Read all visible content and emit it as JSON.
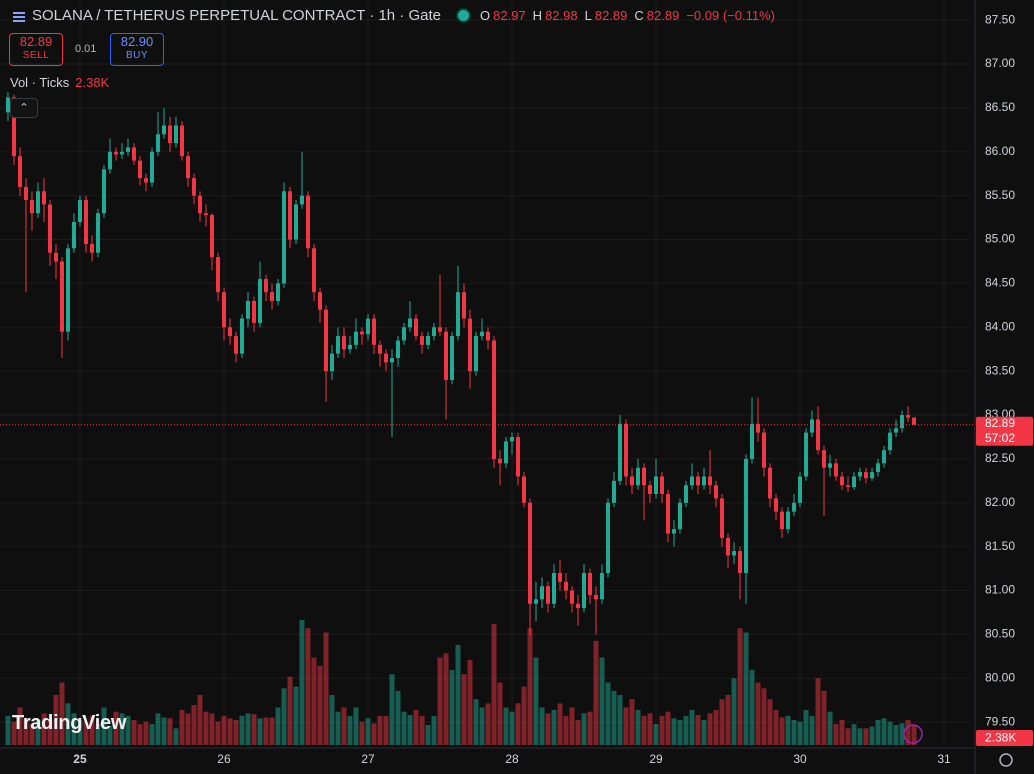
{
  "chart_data": {
    "type": "candlestick",
    "title": "SOLANA / TETHERUS PERPETUAL CONTRACT · 1h · Gate",
    "legend": {
      "labels": [
        "O",
        "H",
        "L",
        "C"
      ],
      "values": [
        "82.97",
        "82.98",
        "82.89",
        "82.89"
      ],
      "change": "−0.09 (−0.11%)"
    },
    "open": [
      86.45,
      86.62,
      85.95,
      85.6,
      85.45,
      85.3,
      85.55,
      85.4,
      84.85,
      84.75,
      83.95,
      84.9,
      85.2,
      85.45,
      84.95,
      84.85,
      85.3,
      85.8,
      86.0,
      85.97,
      86.0,
      86.05,
      85.9,
      85.7,
      85.65,
      86.0,
      86.2,
      86.3,
      86.1,
      86.3,
      85.95,
      85.7,
      85.5,
      85.3,
      85.28,
      84.8,
      84.4,
      84.0,
      83.9,
      83.7,
      84.1,
      84.3,
      84.05,
      84.55,
      84.4,
      84.3,
      84.5,
      85.55,
      85.0,
      85.4,
      85.5,
      84.9,
      84.4,
      84.2,
      83.5,
      83.7,
      83.9,
      83.75,
      83.8,
      83.95,
      83.92,
      84.1,
      83.8,
      83.7,
      83.6,
      83.65,
      83.85,
      84.0,
      84.1,
      83.9,
      83.8,
      83.9,
      84.0,
      83.95,
      83.4,
      83.9,
      84.4,
      84.1,
      83.5,
      83.9,
      83.95,
      83.85,
      82.5,
      82.45,
      82.7,
      82.75,
      82.3,
      82.0,
      80.85,
      80.9,
      81.05,
      80.85,
      81.2,
      81.1,
      81.0,
      80.85,
      80.8,
      81.2,
      80.95,
      80.9,
      81.2,
      82.0,
      82.25,
      82.9,
      82.3,
      82.2,
      82.4,
      82.2,
      82.1,
      82.3,
      82.1,
      81.65,
      81.7,
      82.0,
      82.2,
      82.3,
      82.2,
      82.3,
      82.2,
      82.05,
      81.6,
      81.4,
      81.45,
      81.2,
      82.5,
      82.9,
      82.8,
      82.4,
      82.05,
      81.9,
      81.7,
      81.9,
      82.0,
      82.3,
      82.8,
      82.95,
      82.6,
      82.4,
      82.45,
      82.3,
      82.2,
      82.18,
      82.3,
      82.35,
      82.28,
      82.35,
      82.45,
      82.6,
      82.8,
      82.85,
      83.0,
      82.97
    ],
    "high": [
      86.68,
      86.65,
      86.05,
      85.7,
      85.55,
      85.65,
      85.7,
      85.45,
      84.95,
      84.8,
      84.95,
      85.3,
      85.5,
      85.5,
      85.05,
      85.35,
      85.85,
      86.15,
      86.05,
      86.1,
      86.15,
      86.1,
      85.95,
      85.75,
      86.05,
      86.45,
      86.5,
      86.4,
      86.4,
      86.35,
      86.0,
      85.75,
      85.55,
      85.4,
      85.3,
      84.85,
      84.45,
      84.1,
      83.95,
      84.15,
      84.4,
      84.35,
      84.75,
      84.6,
      84.5,
      84.55,
      85.65,
      85.6,
      85.45,
      86.0,
      85.55,
      84.95,
      84.45,
      84.25,
      83.8,
      84.0,
      84.0,
      83.9,
      84.1,
      84.0,
      84.15,
      84.15,
      83.85,
      83.75,
      83.75,
      83.9,
      84.05,
      84.3,
      84.15,
      83.95,
      83.95,
      84.05,
      84.6,
      84.0,
      83.95,
      84.7,
      84.5,
      84.2,
      83.95,
      84.1,
      84.0,
      83.9,
      82.6,
      82.75,
      82.8,
      82.8,
      82.35,
      82.05,
      81.1,
      81.15,
      81.1,
      81.3,
      81.35,
      81.2,
      81.05,
      80.95,
      81.3,
      81.25,
      81.05,
      81.3,
      82.05,
      82.35,
      83.0,
      82.95,
      82.4,
      82.5,
      82.45,
      82.25,
      82.5,
      82.35,
      82.15,
      81.8,
      82.05,
      82.25,
      82.45,
      82.35,
      82.4,
      82.6,
      82.25,
      82.1,
      81.65,
      81.55,
      81.5,
      82.55,
      83.2,
      83.2,
      82.85,
      82.45,
      82.1,
      81.95,
      81.95,
      82.1,
      82.35,
      82.85,
      83.05,
      83.1,
      82.65,
      82.55,
      82.5,
      82.35,
      82.3,
      82.35,
      82.4,
      82.4,
      82.4,
      82.5,
      82.65,
      82.85,
      82.95,
      83.05,
      83.1,
      82.98
    ],
    "low": [
      86.35,
      85.85,
      85.5,
      84.4,
      85.1,
      85.25,
      85.2,
      84.7,
      84.55,
      83.65,
      83.85,
      84.85,
      85.15,
      84.85,
      84.75,
      84.8,
      85.25,
      85.75,
      85.9,
      85.92,
      85.95,
      85.85,
      85.62,
      85.55,
      85.6,
      85.95,
      86.15,
      86.0,
      86.05,
      85.9,
      85.6,
      85.4,
      85.2,
      85.15,
      84.65,
      84.3,
      83.85,
      83.8,
      83.6,
      83.65,
      84.0,
      83.95,
      84.0,
      84.3,
      84.2,
      84.25,
      84.45,
      84.9,
      84.95,
      85.35,
      84.8,
      84.3,
      84.05,
      83.15,
      83.4,
      83.65,
      83.65,
      83.7,
      83.75,
      83.8,
      83.85,
      83.7,
      83.55,
      83.5,
      82.75,
      83.55,
      83.8,
      83.95,
      83.85,
      83.7,
      83.75,
      83.85,
      83.9,
      82.95,
      83.35,
      83.85,
      84.0,
      83.3,
      83.45,
      83.85,
      83.75,
      82.4,
      82.2,
      82.4,
      82.55,
      82.2,
      81.95,
      80.5,
      80.65,
      80.8,
      80.75,
      80.8,
      81.0,
      80.9,
      80.75,
      80.6,
      80.75,
      80.85,
      80.5,
      80.85,
      81.15,
      81.95,
      82.2,
      82.2,
      82.1,
      82.15,
      81.8,
      82.0,
      82.05,
      82.0,
      81.55,
      81.5,
      81.65,
      81.95,
      82.15,
      82.1,
      82.15,
      82.1,
      81.95,
      81.5,
      81.25,
      81.3,
      80.9,
      80.85,
      82.45,
      82.7,
      82.3,
      81.95,
      81.8,
      81.6,
      81.65,
      81.85,
      81.95,
      82.25,
      82.75,
      82.55,
      81.85,
      82.3,
      82.25,
      82.15,
      82.12,
      82.15,
      82.25,
      82.22,
      82.25,
      82.3,
      82.4,
      82.55,
      82.75,
      82.8,
      82.92,
      82.89
    ],
    "close": [
      86.62,
      85.95,
      85.6,
      85.45,
      85.3,
      85.55,
      85.4,
      84.85,
      84.75,
      83.95,
      84.9,
      85.2,
      85.45,
      84.95,
      84.85,
      85.3,
      85.8,
      86.0,
      85.97,
      86.0,
      86.05,
      85.9,
      85.7,
      85.65,
      86.0,
      86.2,
      86.3,
      86.1,
      86.3,
      85.95,
      85.7,
      85.5,
      85.3,
      85.28,
      84.8,
      84.4,
      84.0,
      83.9,
      83.7,
      84.1,
      84.3,
      84.05,
      84.55,
      84.4,
      84.3,
      84.5,
      85.55,
      85.0,
      85.4,
      85.5,
      84.9,
      84.4,
      84.2,
      83.5,
      83.7,
      83.9,
      83.75,
      83.8,
      83.95,
      83.92,
      84.1,
      83.8,
      83.7,
      83.6,
      83.65,
      83.85,
      84.0,
      84.1,
      83.9,
      83.8,
      83.9,
      84.0,
      83.95,
      83.4,
      83.9,
      84.4,
      84.1,
      83.5,
      83.9,
      83.95,
      83.85,
      82.5,
      82.45,
      82.7,
      82.75,
      82.3,
      82.0,
      80.85,
      80.9,
      81.05,
      80.85,
      81.2,
      81.1,
      81.0,
      80.85,
      80.8,
      81.2,
      80.95,
      80.9,
      81.2,
      82.0,
      82.25,
      82.9,
      82.3,
      82.2,
      82.4,
      82.2,
      82.1,
      82.3,
      82.1,
      81.65,
      81.7,
      82.0,
      82.2,
      82.3,
      82.2,
      82.3,
      82.2,
      82.05,
      81.6,
      81.4,
      81.45,
      81.2,
      82.5,
      82.9,
      82.8,
      82.4,
      82.05,
      81.9,
      81.7,
      81.9,
      82.0,
      82.3,
      82.8,
      82.95,
      82.6,
      82.4,
      82.45,
      82.3,
      82.2,
      82.18,
      82.3,
      82.35,
      82.28,
      82.35,
      82.45,
      82.6,
      82.8,
      82.85,
      83.0,
      82.97,
      82.89
    ],
    "volume": [
      3500,
      2800,
      4500,
      3200,
      2500,
      3000,
      3800,
      3000,
      6000,
      7500,
      5000,
      3800,
      3000,
      2800,
      3500,
      2500,
      4500,
      2300,
      4000,
      3800,
      3500,
      3000,
      2500,
      2800,
      2500,
      3800,
      3300,
      3200,
      2000,
      4200,
      3800,
      4800,
      6000,
      4000,
      3800,
      2800,
      3500,
      3200,
      3000,
      3500,
      3800,
      3700,
      3200,
      3300,
      3300,
      4500,
      6800,
      8200,
      7000,
      15000,
      14000,
      10500,
      9500,
      13500,
      6000,
      4000,
      4500,
      3500,
      4500,
      2800,
      3200,
      2600,
      3500,
      3500,
      8500,
      6500,
      4000,
      3600,
      4200,
      3500,
      2400,
      3500,
      10500,
      11000,
      9000,
      12000,
      8500,
      10200,
      5500,
      4500,
      5000,
      14500,
      7500,
      4500,
      4000,
      5000,
      7000,
      14000,
      10500,
      4500,
      3800,
      4200,
      5000,
      3500,
      4500,
      3000,
      3800,
      4000,
      12500,
      10500,
      7500,
      6500,
      6000,
      4500,
      5500,
      4200,
      3500,
      3800,
      2500,
      3500,
      4000,
      3200,
      3000,
      3500,
      4200,
      3600,
      3000,
      3800,
      4200,
      5500,
      6000,
      8000,
      14000,
      13500,
      9000,
      7500,
      6800,
      5500,
      4200,
      3300,
      3500,
      3000,
      2800,
      4200,
      3500,
      8000,
      6500,
      4000,
      2500,
      3000,
      2000,
      2500,
      2000,
      2000,
      2200,
      3000,
      3200,
      2800,
      2400,
      2600,
      3000,
      2380
    ],
    "volume_indicator": "Vol · Ticks",
    "volume_label": "2.38K",
    "up_color": "#22ab94",
    "down_color": "#f23645",
    "ylim": [
      79.24,
      87.73
    ],
    "yticks": [
      {
        "value": 79.5,
        "label": "79.50"
      },
      {
        "value": 80,
        "label": "80.00"
      },
      {
        "value": 80.5,
        "label": "80.50"
      },
      {
        "value": 81,
        "label": "81.00"
      },
      {
        "value": 81.5,
        "label": "81.50"
      },
      {
        "value": 82,
        "label": "82.00"
      },
      {
        "value": 82.5,
        "label": "82.50"
      },
      {
        "value": 83,
        "label": "83.00"
      },
      {
        "value": 83.5,
        "label": "83.50"
      },
      {
        "value": 84,
        "label": "84.00"
      },
      {
        "value": 84.5,
        "label": "84.50"
      },
      {
        "value": 85,
        "label": "85.00"
      },
      {
        "value": 85.5,
        "label": "85.50"
      },
      {
        "value": 86,
        "label": "86.00"
      },
      {
        "value": 86.5,
        "label": "86.50"
      },
      {
        "value": 87,
        "label": "87.00"
      },
      {
        "value": 87.5,
        "label": "87.50"
      }
    ],
    "xlim": [
      -1.33,
      160.33
    ],
    "xticks": [
      {
        "value": 12,
        "label": "25"
      },
      {
        "value": 36,
        "label": "26"
      },
      {
        "value": 60,
        "label": "27"
      },
      {
        "value": 84,
        "label": "28"
      },
      {
        "value": 108,
        "label": "29"
      },
      {
        "value": 132,
        "label": "30"
      },
      {
        "value": 156,
        "label": "31"
      }
    ],
    "grid": true,
    "last_price": 82.89,
    "countdown": "57:02"
  },
  "trade_panel": {
    "sell_price": "82.89",
    "sell": "SELL",
    "spread": "0.01",
    "buy_price": "82.90",
    "buy": "BUY"
  },
  "branding": "TradingView"
}
